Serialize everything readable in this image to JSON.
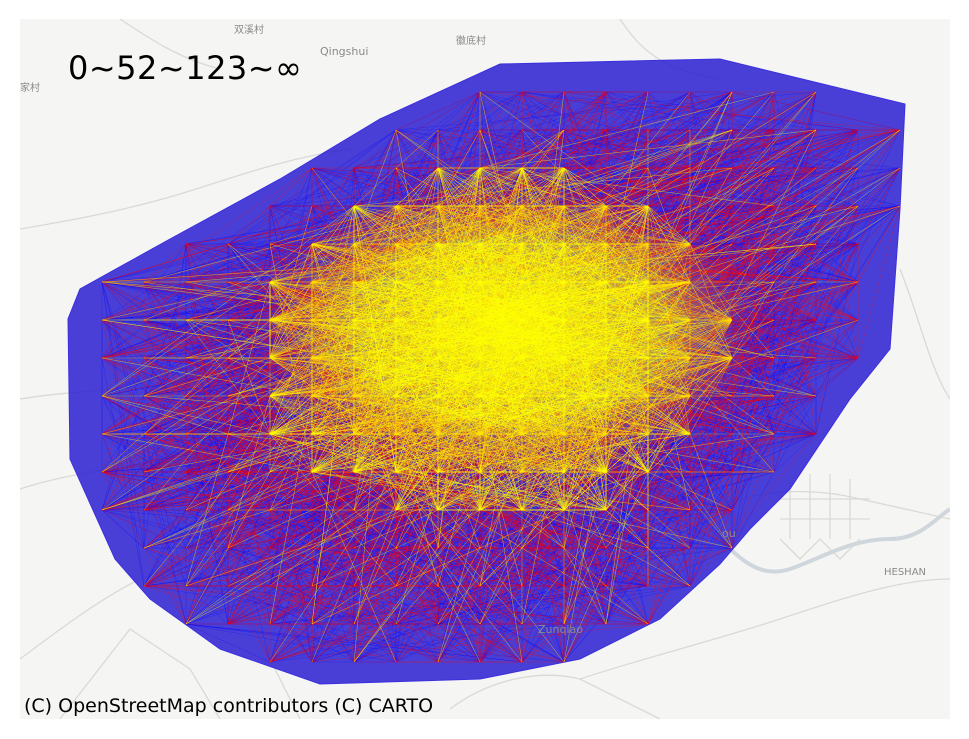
{
  "map": {
    "legend_title": "0~52~123~∞",
    "attribution": "(C) OpenStreetMap contributors (C) CARTO",
    "basemap_style": "CARTO light",
    "place_labels": {
      "qingshui": "Qingshui",
      "zunqiao": "Zunqiao",
      "heshan": "HESHAN",
      "ou": "ou",
      "cn_1": "双溪村",
      "cn_2": "徽底村",
      "cn_3": "家村"
    },
    "flow_colors": {
      "low": "#0000ff",
      "mid": "#ff0000",
      "high": "#ffff00"
    },
    "flow_class_breaks": [
      0,
      52,
      123,
      "∞"
    ]
  }
}
